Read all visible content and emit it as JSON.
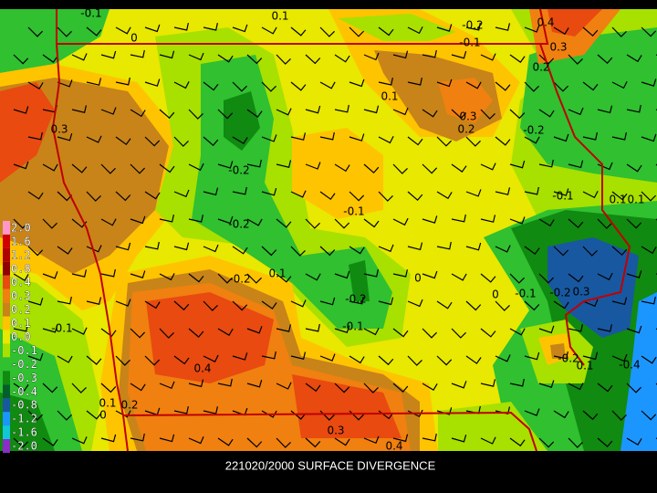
{
  "title": "221020/2000 SURFACE DIVERGENCE",
  "legend": {
    "labels": [
      "2.0",
      "1.6",
      "1.2",
      "0.8",
      "0.4",
      "0.3",
      "0.2",
      "0.1",
      "0.0",
      "-0.1",
      "-0.2",
      "-0.3",
      "-0.4",
      "-0.8",
      "-1.2",
      "-1.6",
      "-2.0"
    ],
    "colors": [
      "#ff98c8",
      "#d00000",
      "#b00000",
      "#900000",
      "#e84a10",
      "#f08010",
      "#c88418",
      "#ffc400",
      "#e8e800",
      "#a8e000",
      "#30c030",
      "#108a10",
      "#006028",
      "#1858a0",
      "#1c96ff",
      "#10c8d8",
      "#8c2cc8"
    ]
  },
  "contour_labels": [
    "-0.1",
    "0.1",
    "0",
    "-0.2",
    "-0.1",
    "0.4",
    "0.3",
    "0.2",
    "0.1",
    "0.3",
    "0.2",
    "0.3",
    "-0.2",
    "-0.2",
    "-0.1",
    "-0.1",
    "-0.2",
    "0.1",
    "0.1",
    "-0.2",
    "0.1",
    "0",
    "-0.2",
    "-0.1",
    "0",
    "-0.1",
    "-0.2",
    "0.3",
    "-0.1",
    "0.4",
    "-0.2",
    "0.1",
    "-0.4",
    "0.2",
    "0.1",
    "0",
    "0.3",
    "0.4"
  ]
}
